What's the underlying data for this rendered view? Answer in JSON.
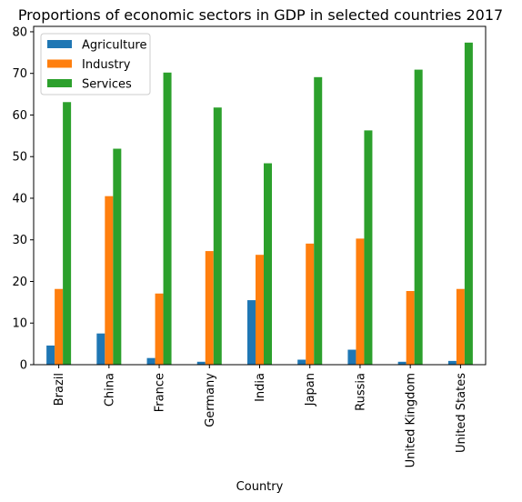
{
  "chart_data": {
    "type": "bar",
    "title": "Proportions of economic sectors in GDP in selected countries 2017",
    "xlabel": "Country",
    "ylabel": "",
    "categories": [
      "Brazil",
      "China",
      "France",
      "Germany",
      "India",
      "Japan",
      "Russia",
      "United Kingdom",
      "United States"
    ],
    "series": [
      {
        "name": "Agriculture",
        "color": "#1f77b4",
        "values": [
          4.6,
          7.5,
          1.6,
          0.7,
          15.5,
          1.2,
          3.6,
          0.7,
          0.9
        ]
      },
      {
        "name": "Industry",
        "color": "#ff7f0e",
        "values": [
          18.2,
          40.5,
          17.1,
          27.3,
          26.4,
          29.1,
          30.3,
          17.7,
          18.2
        ]
      },
      {
        "name": "Services",
        "color": "#2ca02c",
        "values": [
          63.1,
          51.9,
          70.2,
          61.8,
          48.4,
          69.1,
          56.3,
          70.9,
          77.4
        ]
      }
    ],
    "ylim": [
      0,
      81.3
    ],
    "yticks": [
      0,
      10,
      20,
      30,
      40,
      50,
      60,
      70,
      80
    ],
    "grid": false,
    "legend_position": "top-left"
  }
}
